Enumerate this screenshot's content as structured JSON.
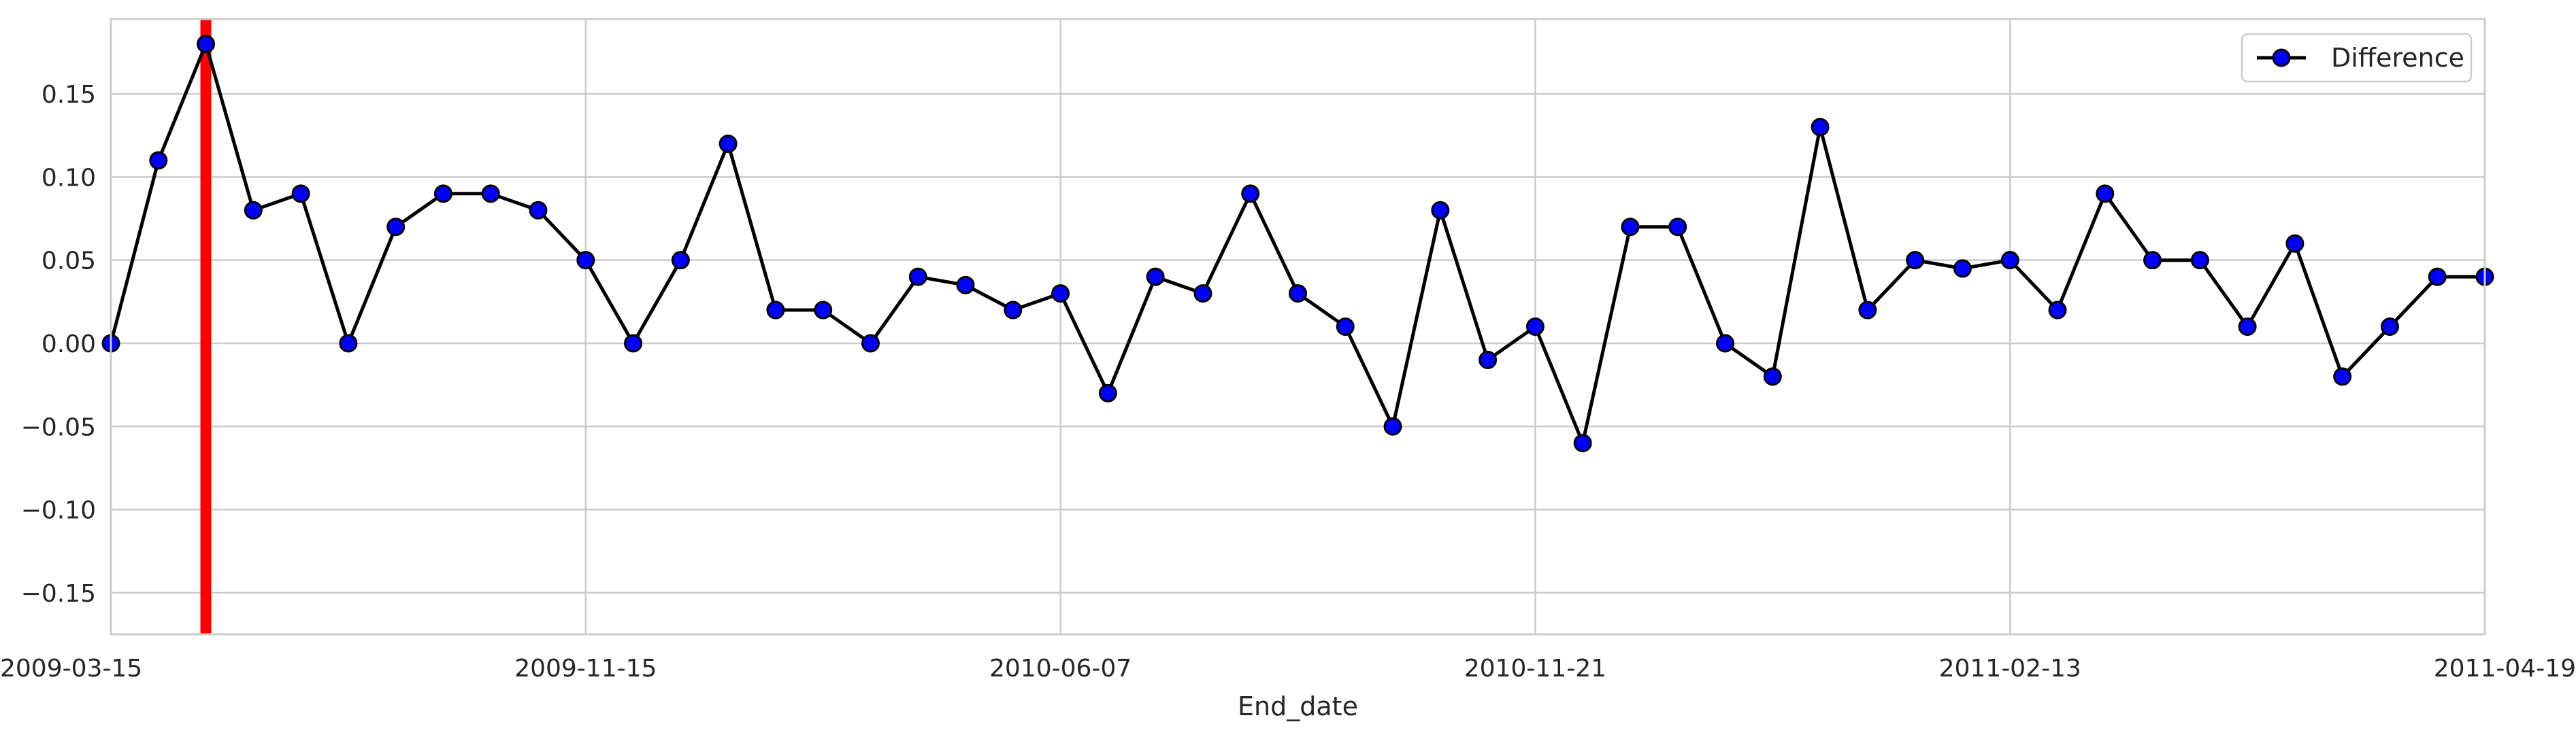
{
  "chart_data": {
    "type": "line",
    "xlabel": "End_date",
    "ylabel": "",
    "title": "",
    "ylim": [
      -0.175,
      0.195
    ],
    "yticks": [
      -0.15,
      -0.1,
      -0.05,
      0.0,
      0.05,
      0.1,
      0.15
    ],
    "ytick_labels": [
      "−0.15",
      "−0.10",
      "−0.05",
      "0.00",
      "0.05",
      "0.10",
      "0.15"
    ],
    "xtick_labels": [
      "2009-03-15",
      "2009-11-15",
      "2010-06-07",
      "2010-11-21",
      "2011-02-13",
      "2011-04-19"
    ],
    "xtick_positions": [
      0,
      10,
      20,
      30,
      40,
      50
    ],
    "grid": true,
    "legend_position": "top-right",
    "series": [
      {
        "name": "Difference",
        "line_color": "#000000",
        "marker_color": "#0000ff",
        "values": [
          0.0,
          0.11,
          0.18,
          0.08,
          0.09,
          0.0,
          0.07,
          0.09,
          0.09,
          0.08,
          0.05,
          0.0,
          0.05,
          0.12,
          0.02,
          0.02,
          0.0,
          0.04,
          0.035,
          0.02,
          0.03,
          -0.03,
          0.04,
          0.03,
          0.09,
          0.03,
          0.01,
          -0.05,
          0.08,
          -0.01,
          0.01,
          -0.06,
          0.07,
          0.07,
          0.0,
          -0.02,
          0.13,
          0.02,
          0.05,
          0.045,
          0.05,
          0.02,
          0.09,
          0.05,
          0.05,
          0.01,
          0.06,
          -0.02,
          0.01,
          0.04,
          0.04
        ]
      }
    ],
    "vertical_marker": {
      "index": 2,
      "color": "#ff0000"
    }
  }
}
